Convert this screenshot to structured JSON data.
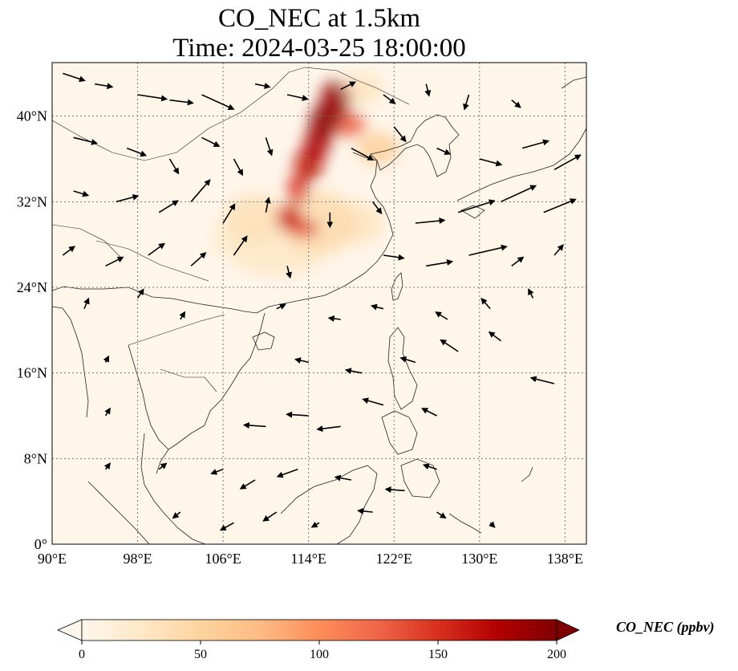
{
  "title": {
    "line1": "CO_NEC at 1.5km",
    "line2": "Time: 2024-03-25 18:00:00"
  },
  "map": {
    "lon_range": [
      90,
      140
    ],
    "lat_range": [
      0,
      45
    ],
    "lon_ticks": [
      {
        "value": 90,
        "label": "90°E"
      },
      {
        "value": 98,
        "label": "98°E"
      },
      {
        "value": 106,
        "label": "106°E"
      },
      {
        "value": 114,
        "label": "114°E"
      },
      {
        "value": 122,
        "label": "122°E"
      },
      {
        "value": 130,
        "label": "130°E"
      },
      {
        "value": 138,
        "label": "138°E"
      }
    ],
    "lat_ticks": [
      {
        "value": 0,
        "label": "0°"
      },
      {
        "value": 8,
        "label": "8°N"
      },
      {
        "value": 16,
        "label": "16°N"
      },
      {
        "value": 24,
        "label": "24°N"
      },
      {
        "value": 32,
        "label": "32°N"
      },
      {
        "value": 40,
        "label": "40°N"
      }
    ],
    "gridlines": true,
    "background_color": "#fff6ea"
  },
  "colorbar": {
    "label": "CO_NEC (ppbv)",
    "min": 0,
    "max": 200,
    "extend": "both",
    "colormap": "OrRd",
    "ticks": [
      {
        "value": 0,
        "label": "0"
      },
      {
        "value": 50,
        "label": "50"
      },
      {
        "value": 100,
        "label": "100"
      },
      {
        "value": 150,
        "label": "150"
      },
      {
        "value": 200,
        "label": "200"
      }
    ],
    "colors": [
      "#fff7ec",
      "#fee8c8",
      "#fdd49e",
      "#fdbb84",
      "#fc8d59",
      "#ef6548",
      "#d7301f",
      "#b30000",
      "#7f0000"
    ]
  },
  "concentration_field": [
    {
      "lon": 116.5,
      "lat": 41.5,
      "rx": 1.4,
      "ry": 1.8,
      "value": 190
    },
    {
      "lon": 115.5,
      "lat": 39.5,
      "rx": 1.4,
      "ry": 1.6,
      "value": 195
    },
    {
      "lon": 114.8,
      "lat": 37.5,
      "rx": 1.2,
      "ry": 1.6,
      "value": 180
    },
    {
      "lon": 114.0,
      "lat": 35.5,
      "rx": 1.3,
      "ry": 1.6,
      "value": 170
    },
    {
      "lon": 113.0,
      "lat": 33.2,
      "rx": 1.0,
      "ry": 1.4,
      "value": 150
    },
    {
      "lon": 112.2,
      "lat": 30.5,
      "rx": 1.2,
      "ry": 1.2,
      "value": 160
    },
    {
      "lon": 113.5,
      "lat": 29.5,
      "rx": 1.5,
      "ry": 0.8,
      "value": 140
    },
    {
      "lon": 117.8,
      "lat": 39.2,
      "rx": 1.5,
      "ry": 1.1,
      "value": 130
    },
    {
      "lon": 120.5,
      "lat": 37.0,
      "rx": 2.0,
      "ry": 1.5,
      "value": 55
    },
    {
      "lon": 115.0,
      "lat": 30.0,
      "rx": 3.5,
      "ry": 3.0,
      "value": 40
    },
    {
      "lon": 109.0,
      "lat": 30.5,
      "rx": 3.0,
      "ry": 2.2,
      "value": 35
    },
    {
      "lon": 111.0,
      "lat": 27.5,
      "rx": 4.5,
      "ry": 2.5,
      "value": 25
    },
    {
      "lon": 118.5,
      "lat": 30.0,
      "rx": 2.5,
      "ry": 2.0,
      "value": 30
    },
    {
      "lon": 107.0,
      "lat": 28.5,
      "rx": 2.2,
      "ry": 1.8,
      "value": 20
    },
    {
      "lon": 119.0,
      "lat": 42.5,
      "rx": 2.0,
      "ry": 1.5,
      "value": 30
    }
  ],
  "wind_vectors": [
    {
      "lon": 91,
      "lat": 44,
      "u": 1.5,
      "v": -0.5
    },
    {
      "lon": 94,
      "lat": 43,
      "u": 1.2,
      "v": -0.2
    },
    {
      "lon": 98,
      "lat": 42,
      "u": 2.0,
      "v": -0.3
    },
    {
      "lon": 101,
      "lat": 41.5,
      "u": 1.6,
      "v": -0.2
    },
    {
      "lon": 104,
      "lat": 42,
      "u": 2.2,
      "v": -1.0
    },
    {
      "lon": 109,
      "lat": 43,
      "u": 1.0,
      "v": -0.2
    },
    {
      "lon": 112,
      "lat": 42,
      "u": 1.4,
      "v": -0.3
    },
    {
      "lon": 117,
      "lat": 42.5,
      "u": 1.0,
      "v": 0.5
    },
    {
      "lon": 121,
      "lat": 42,
      "u": 0.8,
      "v": -0.6
    },
    {
      "lon": 125,
      "lat": 43,
      "u": 0.2,
      "v": -0.8
    },
    {
      "lon": 129,
      "lat": 42,
      "u": -0.3,
      "v": -1.0
    },
    {
      "lon": 133,
      "lat": 41.5,
      "u": 0.6,
      "v": -0.5
    },
    {
      "lon": 92,
      "lat": 38,
      "u": 1.6,
      "v": -0.4
    },
    {
      "lon": 97,
      "lat": 37,
      "u": 1.3,
      "v": -0.5
    },
    {
      "lon": 101,
      "lat": 36,
      "u": 0.6,
      "v": -1.0
    },
    {
      "lon": 104,
      "lat": 38,
      "u": 1.2,
      "v": -0.6
    },
    {
      "lon": 107,
      "lat": 36,
      "u": 0.6,
      "v": -1.1
    },
    {
      "lon": 110,
      "lat": 38,
      "u": 0.4,
      "v": -1.2
    },
    {
      "lon": 118,
      "lat": 37,
      "u": 1.5,
      "v": -0.8
    },
    {
      "lon": 122,
      "lat": 39,
      "u": 0.8,
      "v": -1.0
    },
    {
      "lon": 126,
      "lat": 37,
      "u": 0.9,
      "v": -0.4
    },
    {
      "lon": 130,
      "lat": 36,
      "u": 1.5,
      "v": -0.4
    },
    {
      "lon": 134,
      "lat": 37,
      "u": 1.8,
      "v": 0.5
    },
    {
      "lon": 137,
      "lat": 35,
      "u": 1.8,
      "v": 1.0
    },
    {
      "lon": 92,
      "lat": 33,
      "u": 1.0,
      "v": -0.3
    },
    {
      "lon": 96,
      "lat": 32,
      "u": 1.5,
      "v": 0.4
    },
    {
      "lon": 100,
      "lat": 31,
      "u": 1.3,
      "v": 0.8
    },
    {
      "lon": 103,
      "lat": 32,
      "u": 1.3,
      "v": 1.5
    },
    {
      "lon": 106,
      "lat": 30,
      "u": 0.8,
      "v": 1.3
    },
    {
      "lon": 110,
      "lat": 31,
      "u": 0.2,
      "v": 1.0
    },
    {
      "lon": 116,
      "lat": 31,
      "u": 0.0,
      "v": -1.0
    },
    {
      "lon": 120,
      "lat": 32,
      "u": 0.6,
      "v": -0.8
    },
    {
      "lon": 124,
      "lat": 30,
      "u": 2.0,
      "v": 0.2
    },
    {
      "lon": 128,
      "lat": 31,
      "u": 2.5,
      "v": 0.8
    },
    {
      "lon": 132,
      "lat": 32,
      "u": 2.4,
      "v": 1.1
    },
    {
      "lon": 136,
      "lat": 31,
      "u": 2.2,
      "v": 0.9
    },
    {
      "lon": 91,
      "lat": 27,
      "u": 0.8,
      "v": 0.6
    },
    {
      "lon": 95,
      "lat": 26,
      "u": 1.2,
      "v": 0.6
    },
    {
      "lon": 99,
      "lat": 27,
      "u": 1.1,
      "v": 0.8
    },
    {
      "lon": 103,
      "lat": 26,
      "u": 1.0,
      "v": 0.9
    },
    {
      "lon": 107,
      "lat": 27,
      "u": 0.9,
      "v": 1.3
    },
    {
      "lon": 112,
      "lat": 26,
      "u": 0.2,
      "v": -0.8
    },
    {
      "lon": 121,
      "lat": 27,
      "u": 1.4,
      "v": -0.2
    },
    {
      "lon": 125,
      "lat": 26,
      "u": 1.8,
      "v": 0.3
    },
    {
      "lon": 129,
      "lat": 27,
      "u": 2.6,
      "v": 0.6
    },
    {
      "lon": 133,
      "lat": 26,
      "u": 0.8,
      "v": 0.6
    },
    {
      "lon": 137,
      "lat": 27,
      "u": 0.6,
      "v": 0.7
    },
    {
      "lon": 93,
      "lat": 22,
      "u": 0.3,
      "v": 0.7
    },
    {
      "lon": 98,
      "lat": 23,
      "u": 0.4,
      "v": 0.6
    },
    {
      "lon": 102,
      "lat": 21,
      "u": 0.3,
      "v": 0.5
    },
    {
      "lon": 111,
      "lat": 22,
      "u": 0.6,
      "v": 0.3
    },
    {
      "lon": 117,
      "lat": 21,
      "u": -0.8,
      "v": 0.1
    },
    {
      "lon": 121,
      "lat": 22,
      "u": -0.8,
      "v": 0.2
    },
    {
      "lon": 127,
      "lat": 21,
      "u": -0.8,
      "v": 0.5
    },
    {
      "lon": 131,
      "lat": 22,
      "u": -0.6,
      "v": 0.7
    },
    {
      "lon": 135,
      "lat": 23,
      "u": -0.3,
      "v": 0.6
    },
    {
      "lon": 95,
      "lat": 17,
      "u": 0.2,
      "v": 0.4
    },
    {
      "lon": 114,
      "lat": 17,
      "u": -0.9,
      "v": 0.2
    },
    {
      "lon": 119,
      "lat": 16,
      "u": -1.1,
      "v": 0.2
    },
    {
      "lon": 124,
      "lat": 17,
      "u": -1.0,
      "v": 0.3
    },
    {
      "lon": 128,
      "lat": 18,
      "u": -1.2,
      "v": 0.8
    },
    {
      "lon": 132,
      "lat": 19,
      "u": -0.8,
      "v": 0.6
    },
    {
      "lon": 137,
      "lat": 15,
      "u": -1.6,
      "v": 0.4
    },
    {
      "lon": 95,
      "lat": 12,
      "u": 0.3,
      "v": 0.5
    },
    {
      "lon": 110,
      "lat": 11,
      "u": -1.5,
      "v": 0.1
    },
    {
      "lon": 114,
      "lat": 12,
      "u": -1.5,
      "v": 0.1
    },
    {
      "lon": 117,
      "lat": 11,
      "u": -1.6,
      "v": -0.2
    },
    {
      "lon": 121,
      "lat": 13,
      "u": -1.4,
      "v": 0.4
    },
    {
      "lon": 126,
      "lat": 12,
      "u": -1.0,
      "v": 0.5
    },
    {
      "lon": 95,
      "lat": 7,
      "u": 0.3,
      "v": 0.4
    },
    {
      "lon": 100,
      "lat": 7,
      "u": 0.5,
      "v": 0.4
    },
    {
      "lon": 106,
      "lat": 7,
      "u": -0.8,
      "v": -0.3
    },
    {
      "lon": 109,
      "lat": 6,
      "u": -1.0,
      "v": -0.6
    },
    {
      "lon": 113,
      "lat": 7,
      "u": -1.4,
      "v": -0.5
    },
    {
      "lon": 118,
      "lat": 6,
      "u": -1.1,
      "v": 0.2
    },
    {
      "lon": 123,
      "lat": 5,
      "u": -1.3,
      "v": 0.1
    },
    {
      "lon": 126,
      "lat": 7,
      "u": -0.9,
      "v": 0.3
    },
    {
      "lon": 102,
      "lat": 3,
      "u": -0.5,
      "v": -0.4
    },
    {
      "lon": 107,
      "lat": 2,
      "u": -0.9,
      "v": -0.5
    },
    {
      "lon": 111,
      "lat": 3,
      "u": -0.9,
      "v": -0.6
    },
    {
      "lon": 115,
      "lat": 2,
      "u": -0.5,
      "v": -0.3
    },
    {
      "lon": 120,
      "lat": 3,
      "u": -1.0,
      "v": 0.1
    },
    {
      "lon": 126,
      "lat": 3,
      "u": 0.6,
      "v": -0.4
    },
    {
      "lon": 131,
      "lat": 2,
      "u": 0.3,
      "v": -0.3
    }
  ]
}
